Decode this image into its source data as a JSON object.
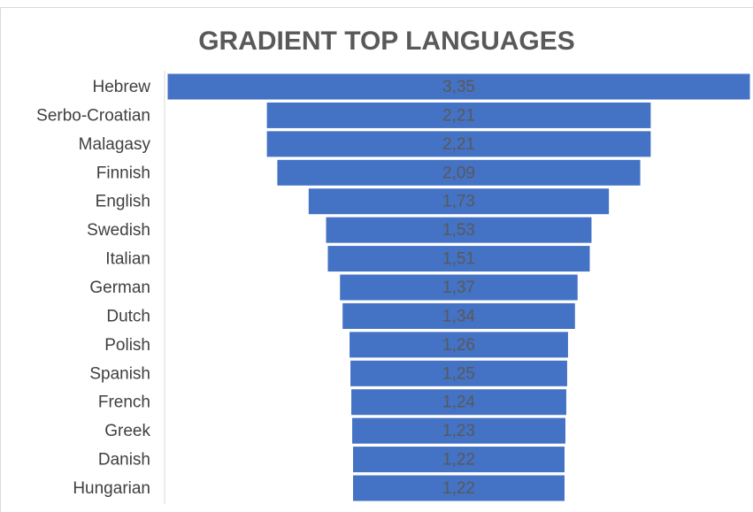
{
  "chart_data": {
    "type": "funnel",
    "title": "GRADIENT TOP LANGUAGES",
    "categories": [
      "Hebrew",
      "Serbo-Croatian",
      "Malagasy",
      "Finnish",
      "English",
      "Swedish",
      "Italian",
      "German",
      "Dutch",
      "Polish",
      "Spanish",
      "French",
      "Greek",
      "Danish",
      "Hungarian"
    ],
    "values": [
      3.35,
      2.21,
      2.21,
      2.09,
      1.73,
      1.53,
      1.51,
      1.37,
      1.34,
      1.26,
      1.25,
      1.24,
      1.23,
      1.22,
      1.22
    ],
    "value_labels": [
      "3,35",
      "2,21",
      "2,21",
      "2,09",
      "1,73",
      "1,53",
      "1,51",
      "1,37",
      "1,34",
      "1,26",
      "1,25",
      "1,24",
      "1,23",
      "1,22",
      "1,22"
    ],
    "color": "#4472c4"
  }
}
